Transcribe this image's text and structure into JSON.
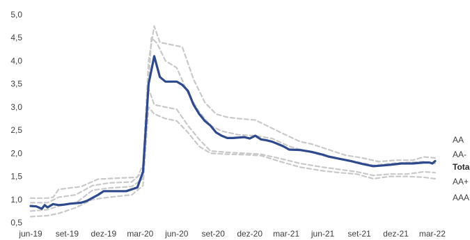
{
  "chart_data": {
    "type": "line",
    "title": "",
    "xlabel": "",
    "ylabel": "",
    "ylim": [
      0.5,
      5.0
    ],
    "yticks": [
      "5,0",
      "4,5",
      "4,0",
      "3,5",
      "3,0",
      "2,5",
      "2,0",
      "1,5",
      "1,0",
      "0,5"
    ],
    "ytick_values": [
      5.0,
      4.5,
      4.0,
      3.5,
      3.0,
      2.5,
      2.0,
      1.5,
      1.0,
      0.5
    ],
    "xticks": [
      {
        "label": "jun-19",
        "t": 0
      },
      {
        "label": "set-19",
        "t": 13
      },
      {
        "label": "dez-19",
        "t": 26
      },
      {
        "label": "mar-20",
        "t": 39
      },
      {
        "label": "jun-20",
        "t": 52
      },
      {
        "label": "set-20",
        "t": 65
      },
      {
        "label": "dez-20",
        "t": 78
      },
      {
        "label": "mar-21",
        "t": 91
      },
      {
        "label": "jun-21",
        "t": 104
      },
      {
        "label": "set-21",
        "t": 117
      },
      {
        "label": "dez-21",
        "t": 130
      },
      {
        "label": "mar-22",
        "t": 143
      }
    ],
    "t_max": 146,
    "grid": false,
    "legend": "labels at right end of lines",
    "series": [
      {
        "name": "AA",
        "style": "dashed",
        "color": "#c9c9c9",
        "points": [
          [
            0,
            1.03
          ],
          [
            6,
            1.03
          ],
          [
            8,
            1.05
          ],
          [
            10,
            1.22
          ],
          [
            14,
            1.25
          ],
          [
            18,
            1.28
          ],
          [
            24,
            1.44
          ],
          [
            34,
            1.47
          ],
          [
            38,
            1.48
          ],
          [
            40,
            1.75
          ],
          [
            42,
            4.0
          ],
          [
            44,
            4.75
          ],
          [
            46,
            4.4
          ],
          [
            50,
            4.35
          ],
          [
            54,
            4.3
          ],
          [
            58,
            3.6
          ],
          [
            62,
            3.1
          ],
          [
            66,
            2.85
          ],
          [
            70,
            2.78
          ],
          [
            74,
            2.75
          ],
          [
            80,
            2.72
          ],
          [
            84,
            2.6
          ],
          [
            90,
            2.42
          ],
          [
            96,
            2.25
          ],
          [
            100,
            2.2
          ],
          [
            106,
            2.08
          ],
          [
            112,
            1.96
          ],
          [
            118,
            1.9
          ],
          [
            124,
            1.82
          ],
          [
            130,
            1.85
          ],
          [
            136,
            1.85
          ],
          [
            140,
            1.92
          ],
          [
            144,
            1.9
          ]
        ],
        "end_value": 1.9
      },
      {
        "name": "AA-",
        "style": "dashed",
        "color": "#c9c9c9",
        "points": [
          [
            0,
            0.93
          ],
          [
            6,
            0.93
          ],
          [
            10,
            1.05
          ],
          [
            16,
            1.1
          ],
          [
            22,
            1.3
          ],
          [
            28,
            1.36
          ],
          [
            36,
            1.38
          ],
          [
            40,
            1.6
          ],
          [
            43,
            4.5
          ],
          [
            45,
            4.38
          ],
          [
            48,
            4.0
          ],
          [
            52,
            3.85
          ],
          [
            56,
            3.3
          ],
          [
            60,
            2.9
          ],
          [
            64,
            2.6
          ],
          [
            68,
            2.48
          ],
          [
            74,
            2.4
          ],
          [
            80,
            2.38
          ],
          [
            86,
            2.32
          ],
          [
            92,
            2.15
          ],
          [
            98,
            2.05
          ],
          [
            104,
            1.95
          ],
          [
            110,
            1.88
          ],
          [
            116,
            1.82
          ],
          [
            122,
            1.74
          ],
          [
            128,
            1.78
          ],
          [
            134,
            1.8
          ],
          [
            140,
            1.82
          ],
          [
            144,
            1.78
          ]
        ],
        "end_value": 1.78
      },
      {
        "name": "Total",
        "style": "solid",
        "color": "#2e4a8c",
        "bold": true,
        "points": [
          [
            0,
            0.86
          ],
          [
            2,
            0.85
          ],
          [
            4,
            0.8
          ],
          [
            5,
            0.88
          ],
          [
            6,
            0.83
          ],
          [
            8,
            0.9
          ],
          [
            10,
            0.88
          ],
          [
            12,
            0.89
          ],
          [
            14,
            0.91
          ],
          [
            18,
            0.93
          ],
          [
            20,
            0.97
          ],
          [
            24,
            1.1
          ],
          [
            26,
            1.18
          ],
          [
            34,
            1.18
          ],
          [
            38,
            1.26
          ],
          [
            40,
            1.6
          ],
          [
            42,
            3.5
          ],
          [
            44,
            4.1
          ],
          [
            46,
            3.65
          ],
          [
            48,
            3.55
          ],
          [
            52,
            3.55
          ],
          [
            54,
            3.48
          ],
          [
            56,
            3.35
          ],
          [
            58,
            3.05
          ],
          [
            60,
            2.85
          ],
          [
            62,
            2.7
          ],
          [
            64,
            2.6
          ],
          [
            66,
            2.45
          ],
          [
            68,
            2.38
          ],
          [
            70,
            2.33
          ],
          [
            72,
            2.33
          ],
          [
            76,
            2.35
          ],
          [
            78,
            2.32
          ],
          [
            80,
            2.38
          ],
          [
            82,
            2.3
          ],
          [
            84,
            2.28
          ],
          [
            86,
            2.25
          ],
          [
            88,
            2.2
          ],
          [
            90,
            2.15
          ],
          [
            92,
            2.08
          ],
          [
            96,
            2.07
          ],
          [
            100,
            2.03
          ],
          [
            104,
            1.97
          ],
          [
            106,
            1.93
          ],
          [
            110,
            1.88
          ],
          [
            114,
            1.83
          ],
          [
            118,
            1.77
          ],
          [
            122,
            1.72
          ],
          [
            124,
            1.73
          ],
          [
            128,
            1.75
          ],
          [
            132,
            1.78
          ],
          [
            136,
            1.78
          ],
          [
            140,
            1.8
          ],
          [
            142,
            1.8
          ],
          [
            143,
            1.78
          ],
          [
            144,
            1.83
          ]
        ],
        "end_value": 1.83
      },
      {
        "name": "AA+",
        "style": "dashed",
        "color": "#c9c9c9",
        "points": [
          [
            0,
            0.75
          ],
          [
            6,
            0.78
          ],
          [
            10,
            0.86
          ],
          [
            16,
            0.92
          ],
          [
            22,
            1.2
          ],
          [
            28,
            1.25
          ],
          [
            36,
            1.28
          ],
          [
            40,
            1.45
          ],
          [
            42,
            3.4
          ],
          [
            44,
            3.05
          ],
          [
            48,
            3.0
          ],
          [
            52,
            2.95
          ],
          [
            56,
            2.6
          ],
          [
            60,
            2.3
          ],
          [
            64,
            2.05
          ],
          [
            70,
            2.02
          ],
          [
            76,
            2.0
          ],
          [
            82,
            1.98
          ],
          [
            90,
            1.87
          ],
          [
            96,
            1.78
          ],
          [
            104,
            1.7
          ],
          [
            110,
            1.65
          ],
          [
            116,
            1.6
          ],
          [
            122,
            1.52
          ],
          [
            128,
            1.55
          ],
          [
            134,
            1.55
          ],
          [
            140,
            1.6
          ],
          [
            144,
            1.58
          ]
        ],
        "end_value": 1.58
      },
      {
        "name": "AAA",
        "style": "dashed",
        "color": "#c9c9c9",
        "points": [
          [
            0,
            0.63
          ],
          [
            6,
            0.65
          ],
          [
            10,
            0.7
          ],
          [
            16,
            0.82
          ],
          [
            22,
            1.0
          ],
          [
            28,
            1.05
          ],
          [
            36,
            1.1
          ],
          [
            40,
            1.3
          ],
          [
            42,
            3.0
          ],
          [
            44,
            2.85
          ],
          [
            48,
            2.75
          ],
          [
            52,
            2.7
          ],
          [
            56,
            2.45
          ],
          [
            60,
            2.15
          ],
          [
            64,
            2.0
          ],
          [
            70,
            1.98
          ],
          [
            76,
            1.97
          ],
          [
            82,
            1.95
          ],
          [
            90,
            1.8
          ],
          [
            96,
            1.7
          ],
          [
            104,
            1.62
          ],
          [
            110,
            1.58
          ],
          [
            116,
            1.55
          ],
          [
            122,
            1.45
          ],
          [
            128,
            1.5
          ],
          [
            134,
            1.5
          ],
          [
            140,
            1.48
          ],
          [
            144,
            1.45
          ]
        ],
        "end_value": 1.45
      }
    ],
    "labels": [
      {
        "text": "AA",
        "series": "AA"
      },
      {
        "text": "AA-",
        "series": "AA-"
      },
      {
        "text": "Total",
        "series": "Total"
      },
      {
        "text": "AA+",
        "series": "AA+"
      },
      {
        "text": "AAA",
        "series": "AAA"
      }
    ]
  }
}
